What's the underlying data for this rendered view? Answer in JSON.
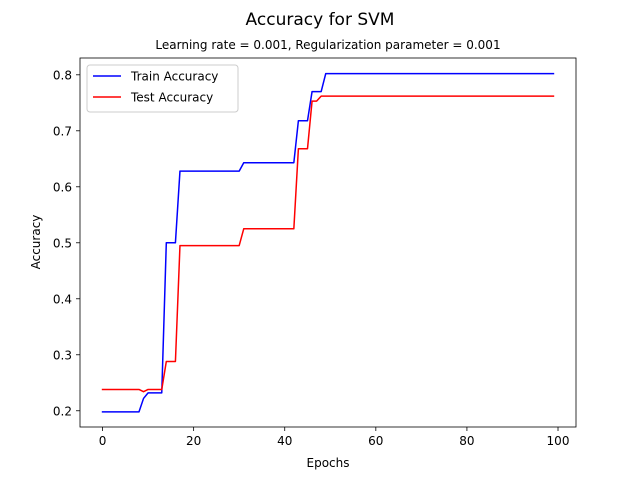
{
  "chart_data": {
    "type": "line",
    "title": "Accuracy for SVM",
    "subtitle": "Learning rate = 0.001, Regularization parameter = 0.001",
    "xlabel": "Epochs",
    "ylabel": "Accuracy",
    "xlim": [
      -4.95,
      103.95
    ],
    "ylim": [
      0.171,
      0.83
    ],
    "xticks": [
      0,
      20,
      40,
      60,
      80,
      100
    ],
    "yticks": [
      0.2,
      0.3,
      0.4,
      0.5,
      0.6,
      0.7,
      0.8
    ],
    "grid": false,
    "legend_position": "upper-left",
    "series": [
      {
        "name": "Train Accuracy",
        "color": "#0000ff",
        "points": [
          [
            0,
            0.198
          ],
          [
            8,
            0.198
          ],
          [
            9,
            0.222
          ],
          [
            10,
            0.232
          ],
          [
            13,
            0.232
          ],
          [
            14,
            0.5
          ],
          [
            16,
            0.5
          ],
          [
            17,
            0.628
          ],
          [
            30,
            0.628
          ],
          [
            31,
            0.643
          ],
          [
            42,
            0.643
          ],
          [
            43,
            0.718
          ],
          [
            45,
            0.718
          ],
          [
            46,
            0.77
          ],
          [
            48,
            0.77
          ],
          [
            49,
            0.802
          ],
          [
            99,
            0.802
          ]
        ]
      },
      {
        "name": "Test Accuracy",
        "color": "#ff0000",
        "points": [
          [
            0,
            0.238
          ],
          [
            8,
            0.238
          ],
          [
            9,
            0.234
          ],
          [
            10,
            0.238
          ],
          [
            13,
            0.238
          ],
          [
            14,
            0.288
          ],
          [
            16,
            0.288
          ],
          [
            17,
            0.495
          ],
          [
            30,
            0.495
          ],
          [
            31,
            0.525
          ],
          [
            42,
            0.525
          ],
          [
            43,
            0.668
          ],
          [
            45,
            0.668
          ],
          [
            46,
            0.753
          ],
          [
            47,
            0.753
          ],
          [
            48,
            0.762
          ],
          [
            99,
            0.762
          ]
        ]
      }
    ]
  }
}
